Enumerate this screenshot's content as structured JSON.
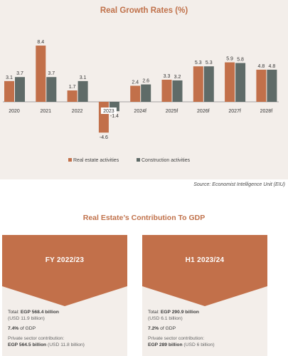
{
  "chart_data": {
    "type": "bar",
    "title": "Real Growth Rates (%)",
    "categories": [
      "2020",
      "2021",
      "2022",
      "2023",
      "2024f",
      "2025f",
      "2026f",
      "2027f",
      "2028f"
    ],
    "series": [
      {
        "name": "Real estate activities",
        "values": [
          3.1,
          8.4,
          1.7,
          -4.6,
          2.4,
          3.3,
          5.3,
          5.9,
          4.8
        ]
      },
      {
        "name": "Construction activities",
        "values": [
          3.7,
          3.7,
          3.1,
          -1.4,
          2.6,
          3.2,
          5.3,
          5.8,
          4.8
        ]
      }
    ],
    "value_labels": {
      "real_estate": [
        "3.1",
        "8.4",
        "1.7",
        "-4.6",
        "2.4",
        "3.3",
        "5.3",
        "5.9",
        "4.8"
      ],
      "construction": [
        "3.7",
        "3.7",
        "3.1",
        "-1.4",
        "2.6",
        "3.2",
        "5.3",
        "5.8",
        "4.8"
      ]
    },
    "xlabel": "",
    "ylabel": "",
    "ylim": [
      -5,
      9
    ],
    "grid": false,
    "legend_position": "bottom",
    "colors": {
      "real_estate": "#c2704a",
      "construction": "#5f6b68"
    }
  },
  "source": "Source: Economist Intelligence Unit (EIU)",
  "gdp": {
    "title": "Real Estate’s Contribution To GDP",
    "cards": [
      {
        "label": "FY 2022/23",
        "total_prefix": "Total: ",
        "total": "EGP 568.4 billion",
        "total_usd": "(USD 11.9 billion)",
        "share": "7.4%",
        "share_suffix": " of GDP",
        "private_label": "Private sector contribution:",
        "private_value": "EGP 564.5 billion",
        "private_usd": " (USD 11.8 billion)"
      },
      {
        "label": "H1 2023/24",
        "total_prefix": "Total: ",
        "total": "EGP 290.9 billion",
        "total_usd": "(USD 6.1 billion)",
        "share": "7.2%",
        "share_suffix": " of GDP",
        "private_label": "Private sector contribution:",
        "private_value": "EGP 289 billion",
        "private_usd": " (USD 6 billion)"
      }
    ]
  }
}
